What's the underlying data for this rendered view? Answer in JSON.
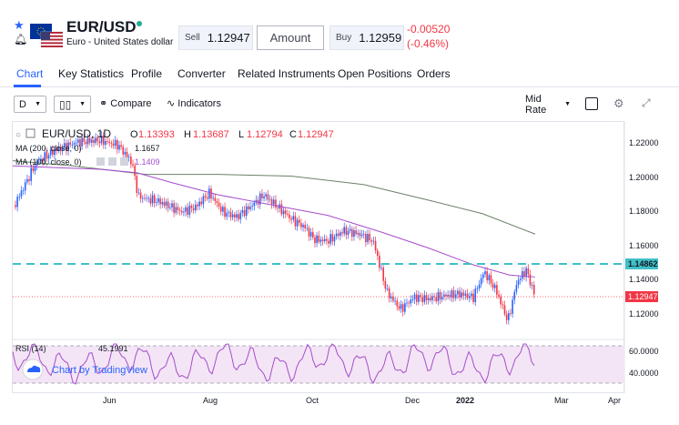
{
  "header": {
    "pair": "EUR/USD",
    "description": "Euro - United States dollar",
    "sell_label": "Sell",
    "sell_price": "1.12947",
    "amount_label": "Amount",
    "buy_label": "Buy",
    "buy_price": "1.12959",
    "change": "-0.00520",
    "change_pct": "(-0.46%)"
  },
  "tabs": [
    "Chart",
    "Key Statistics",
    "Profile",
    "Converter",
    "Related Instruments",
    "Open Positions",
    "Orders"
  ],
  "toolbar": {
    "interval": "D",
    "compare_label": "Compare",
    "indicators_label": "Indicators",
    "price_mode": "Mid Rate"
  },
  "legend": {
    "symbol": "EUR/USD, 1D",
    "o_label": "O",
    "o_value": "1.13393",
    "h_label": "H",
    "h_value": "1.13687",
    "l_label": "L",
    "l_value": "1.12794",
    "c_label": "C",
    "c_value": "1.12947",
    "ma200_label": "MA (200, close, 0)",
    "ma200_value": "1.1657",
    "ma100_label": "MA (100, close, 0)",
    "ma100_value": "1.1409",
    "rsi_label": "RSI (14)",
    "rsi_value": "45.1991"
  },
  "price_scale": [
    "1.22000",
    "1.20000",
    "1.18000",
    "1.16000",
    "1.14000",
    "1.12000"
  ],
  "price_tags": {
    "dashed": "1.14862",
    "last": "1.12947"
  },
  "rsi_scale": [
    "60.0000",
    "40.0000"
  ],
  "time_labels": [
    "Jun",
    "Aug",
    "Oct",
    "Dec",
    "2022",
    "Mar",
    "Apr"
  ],
  "watermark": "Chart by TradingView",
  "colors": {
    "up": "#2962ff",
    "down": "#f23645",
    "ma200": "#6b8068",
    "ma100": "#a64dcc",
    "rsi": "#a64dcc",
    "dashed_line": "#40c0c8",
    "accent": "#2962ff"
  }
}
